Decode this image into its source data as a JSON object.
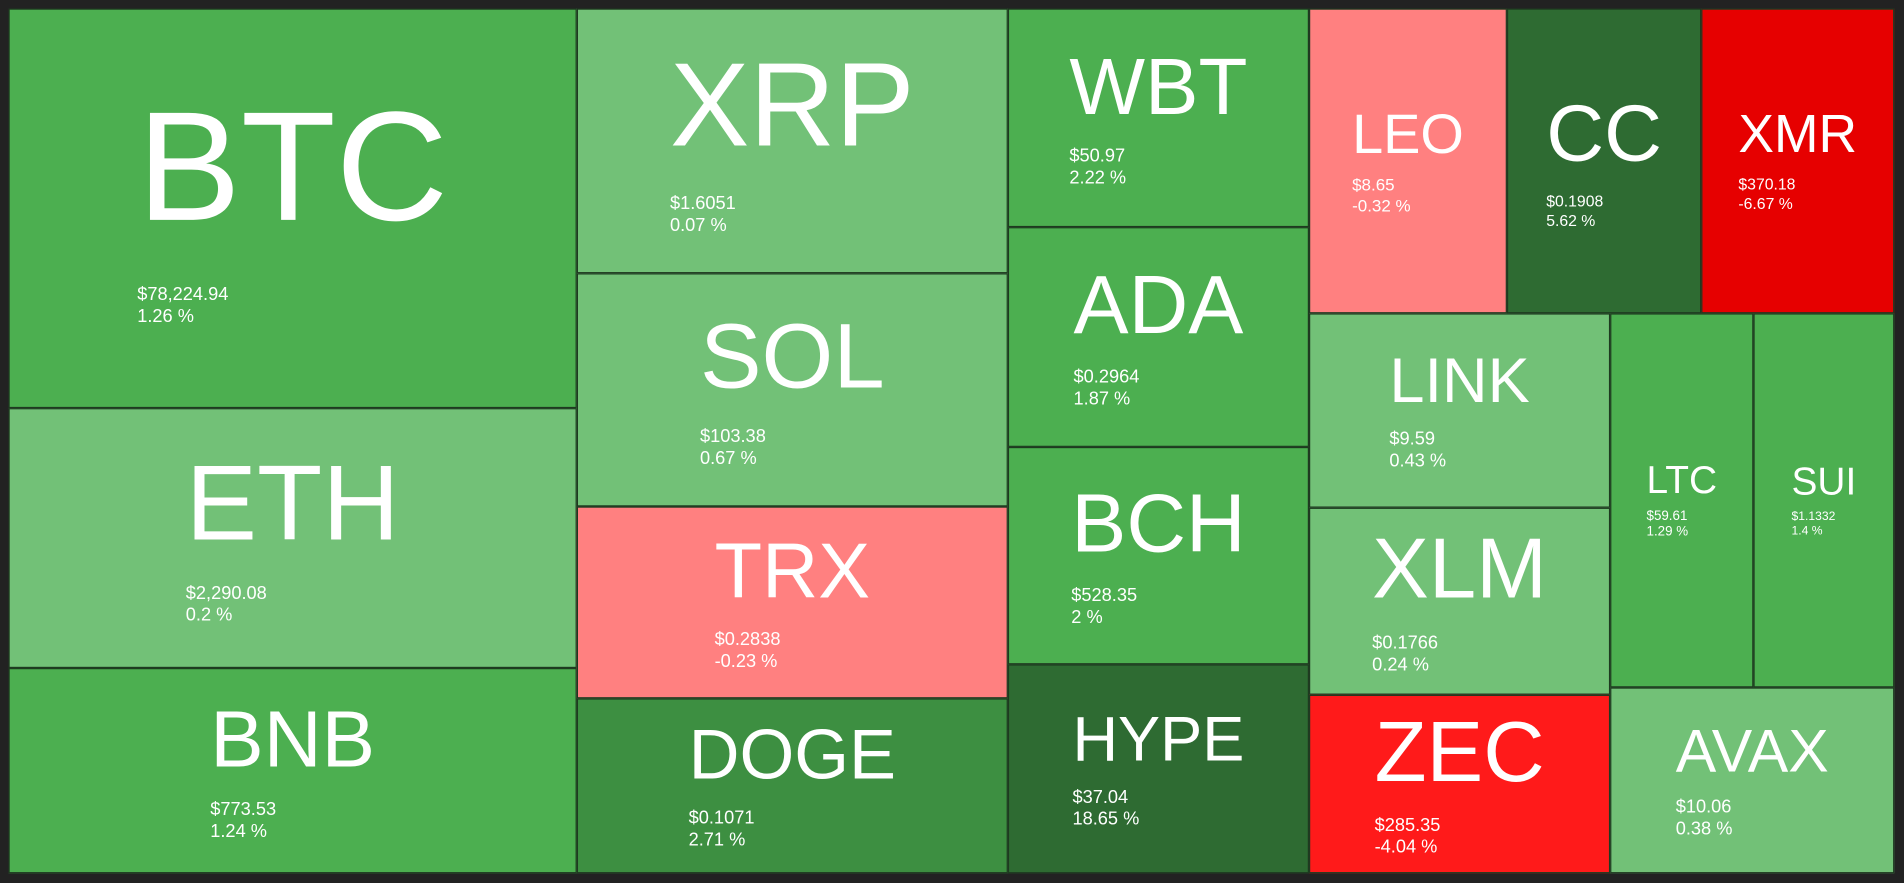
{
  "tiles": [
    {
      "symbol": "BTC",
      "price": "$78,224.94",
      "change": "1.26 %",
      "color": "#4caf50"
    },
    {
      "symbol": "ETH",
      "price": "$2,290.08",
      "change": "0.2 %",
      "color": "#72c177"
    },
    {
      "symbol": "BNB",
      "price": "$773.53",
      "change": "1.24 %",
      "color": "#4caf50"
    },
    {
      "symbol": "XRP",
      "price": "$1.6051",
      "change": "0.07 %",
      "color": "#72c177"
    },
    {
      "symbol": "SOL",
      "price": "$103.38",
      "change": "0.67 %",
      "color": "#72c177"
    },
    {
      "symbol": "TRX",
      "price": "$0.2838",
      "change": "-0.23 %",
      "color": "#ff8080"
    },
    {
      "symbol": "DOGE",
      "price": "$0.1071",
      "change": "2.71 %",
      "color": "#3d8f41"
    },
    {
      "symbol": "WBT",
      "price": "$50.97",
      "change": "2.22 %",
      "color": "#4caf50"
    },
    {
      "symbol": "ADA",
      "price": "$0.2964",
      "change": "1.87 %",
      "color": "#4caf50"
    },
    {
      "symbol": "BCH",
      "price": "$528.35",
      "change": "2 %",
      "color": "#4caf50"
    },
    {
      "symbol": "HYPE",
      "price": "$37.04",
      "change": "18.65 %",
      "color": "#2e6b32"
    },
    {
      "symbol": "LEO",
      "price": "$8.65",
      "change": "-0.32 %",
      "color": "#ff8080"
    },
    {
      "symbol": "CC",
      "price": "$0.1908",
      "change": "5.62 %",
      "color": "#2e6b32"
    },
    {
      "symbol": "XMR",
      "price": "$370.18",
      "change": "-6.67 %",
      "color": "#e60000"
    },
    {
      "symbol": "LINK",
      "price": "$9.59",
      "change": "0.43 %",
      "color": "#72c177"
    },
    {
      "symbol": "XLM",
      "price": "$0.1766",
      "change": "0.24 %",
      "color": "#72c177"
    },
    {
      "symbol": "ZEC",
      "price": "$285.35",
      "change": "-4.04 %",
      "color": "#ff1a1a"
    },
    {
      "symbol": "LTC",
      "price": "$59.61",
      "change": "1.29 %",
      "color": "#4caf50"
    },
    {
      "symbol": "SUI",
      "price": "$1.1332",
      "change": "1.4 %",
      "color": "#4caf50"
    },
    {
      "symbol": "AVAX",
      "price": "$10.06",
      "change": "0.38 %",
      "color": "#72c177"
    }
  ]
}
